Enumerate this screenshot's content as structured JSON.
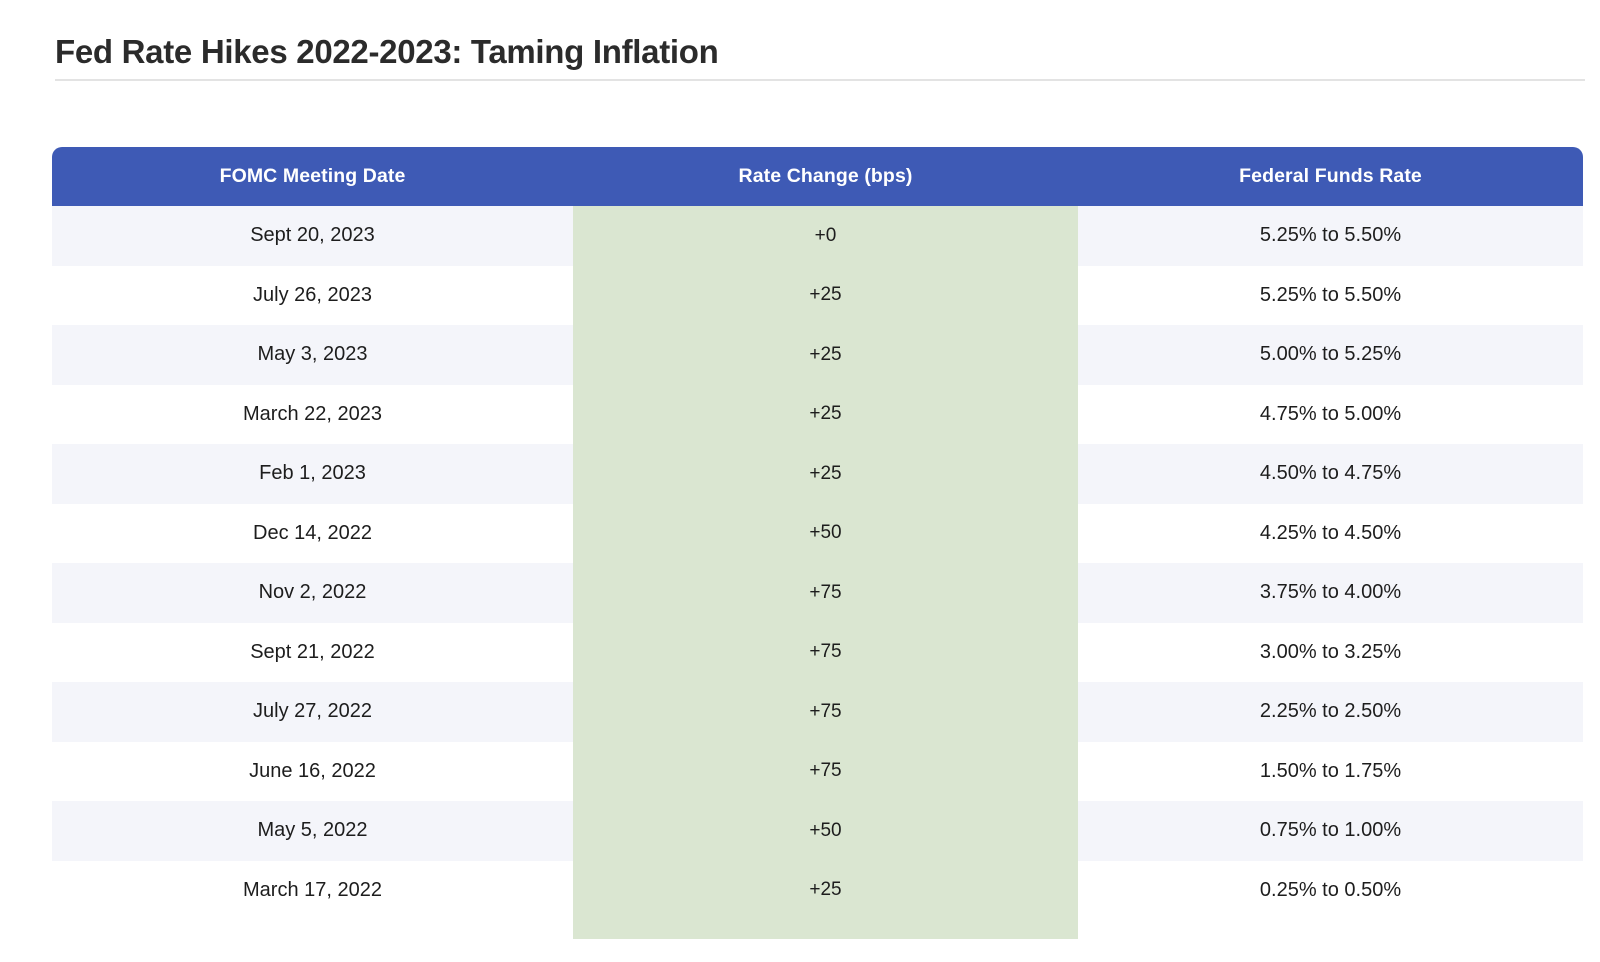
{
  "page": {
    "title": "Fed Rate Hikes 2022-2023: Taming Inflation"
  },
  "chart_data": {
    "type": "table",
    "title": "Fed Rate Hikes 2022-2023: Taming Inflation",
    "columns": [
      "FOMC Meeting Date",
      "Rate Change (bps)",
      "Federal Funds Rate"
    ],
    "highlighted_column": "Rate Change (bps)",
    "rows": [
      [
        "Sept 20, 2023",
        "+0",
        "5.25% to 5.50%"
      ],
      [
        "July 26, 2023",
        "+25",
        "5.25% to 5.50%"
      ],
      [
        "May 3, 2023",
        "+25",
        "5.00% to 5.25%"
      ],
      [
        "March 22, 2023",
        "+25",
        "4.75% to 5.00%"
      ],
      [
        "Feb 1, 2023",
        "+25",
        "4.50% to 4.75%"
      ],
      [
        "Dec 14, 2022",
        "+50",
        "4.25% to 4.50%"
      ],
      [
        "Nov 2, 2022",
        "+75",
        "3.75% to 4.00%"
      ],
      [
        "Sept 21, 2022",
        "+75",
        "3.00% to 3.25%"
      ],
      [
        "July 27, 2022",
        "+75",
        "2.25% to 2.50%"
      ],
      [
        "June 16, 2022",
        "+75",
        "1.50% to 1.75%"
      ],
      [
        "May 5, 2022",
        "+50",
        "0.75% to 1.00%"
      ],
      [
        "March 17, 2022",
        "+25",
        "0.25% to 0.50%"
      ]
    ],
    "rate_change_bps_values": [
      0,
      25,
      25,
      25,
      25,
      50,
      75,
      75,
      75,
      75,
      50,
      25
    ]
  },
  "colors": {
    "header_background": "#3e5ab5",
    "header_text": "#ffffff",
    "highlight_column_background": "#dae6d1",
    "alternate_row_background": "#f4f5fa",
    "row_background": "#ffffff",
    "body_text": "#1d1d1d",
    "title_text": "#2b2b2b",
    "divider": "#e3e3e3"
  }
}
